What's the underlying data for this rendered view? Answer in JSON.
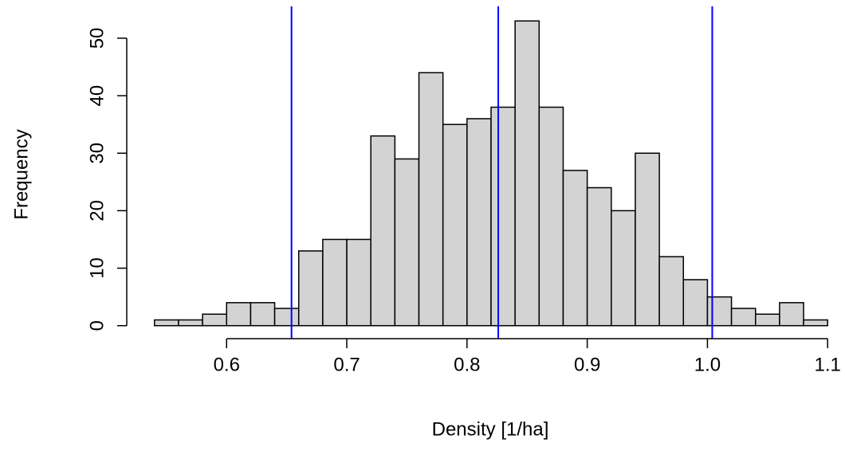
{
  "chart_data": {
    "type": "histogram",
    "xlabel": "Density [1/ha]",
    "ylabel": "Frequency",
    "bins": [
      0.54,
      0.56,
      0.58,
      0.6,
      0.62,
      0.64,
      0.66,
      0.68,
      0.7,
      0.72,
      0.74,
      0.76,
      0.78,
      0.8,
      0.82,
      0.84,
      0.86,
      0.88,
      0.9,
      0.92,
      0.94,
      0.96,
      0.98,
      1.0,
      1.02,
      1.04,
      1.06,
      1.08,
      1.1
    ],
    "values": [
      1,
      1,
      2,
      4,
      4,
      3,
      13,
      15,
      15,
      33,
      29,
      44,
      35,
      36,
      38,
      53,
      38,
      27,
      24,
      20,
      30,
      12,
      8,
      5,
      3,
      2,
      4,
      1
    ],
    "color": "#d3d3d3",
    "xlim": [
      0.54,
      1.1
    ],
    "ylim": [
      0,
      53
    ],
    "xticks": [
      0.6,
      0.7,
      0.8,
      0.9,
      {
        "value": 1,
        "label": "1.0"
      },
      1.1
    ],
    "yticks": [
      0,
      10,
      20,
      30,
      40,
      50
    ],
    "vlines": [
      0.654,
      0.826,
      1.004
    ],
    "vline_color": "#0000ff"
  }
}
